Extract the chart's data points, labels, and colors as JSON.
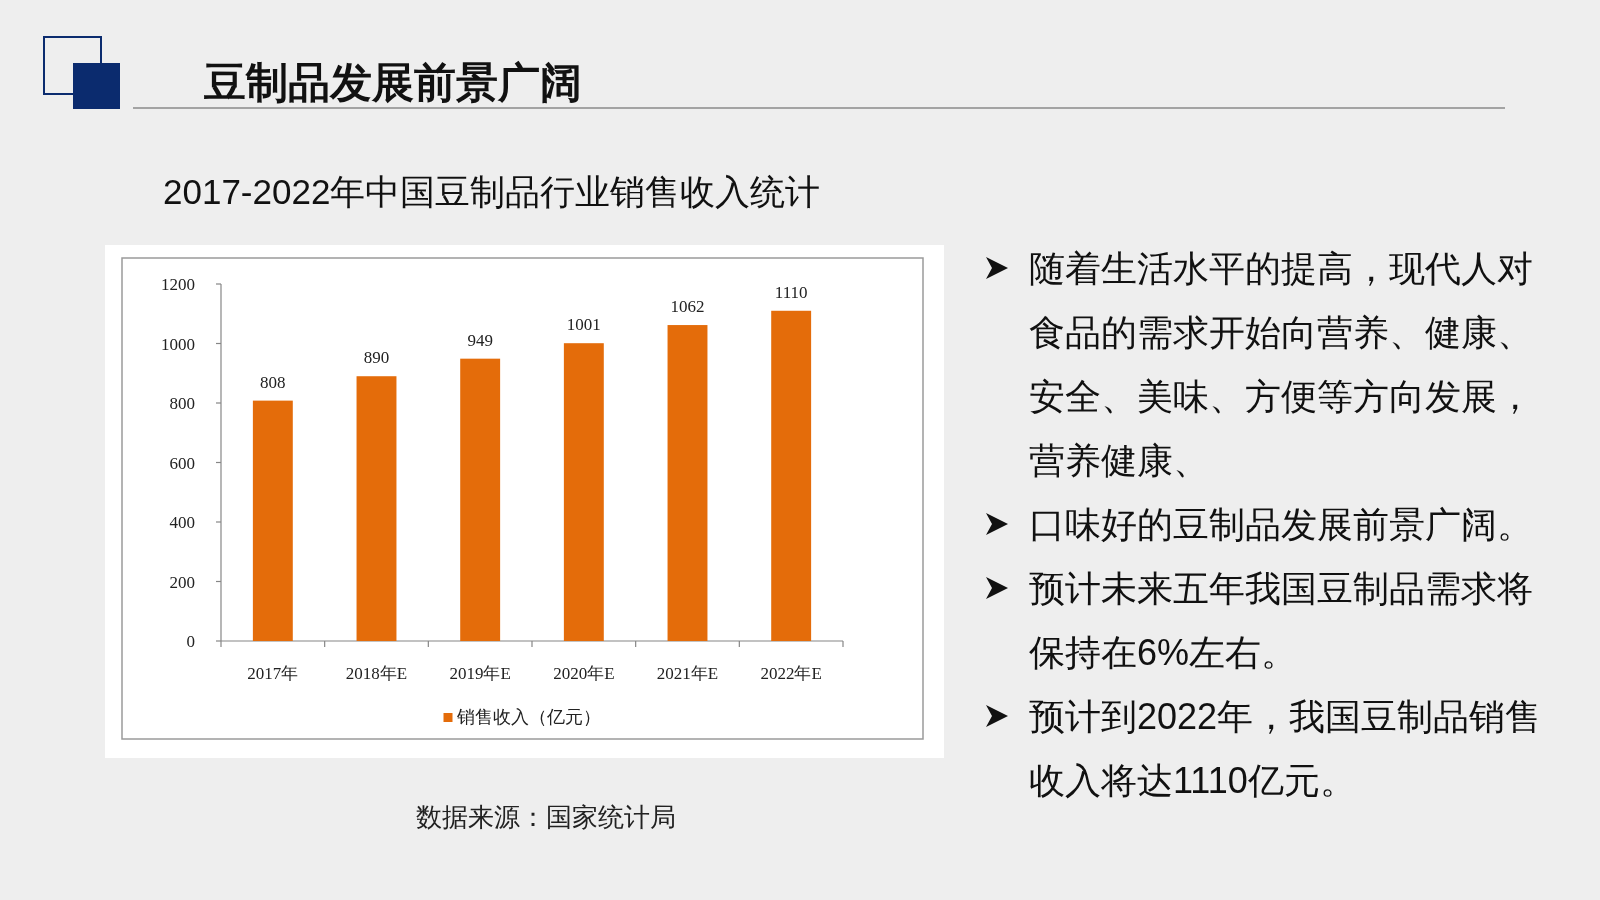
{
  "chart_data": {
    "type": "bar",
    "title": "豆制品发展前景广阔",
    "subtitle": "2017-2022年中国豆制品行业销售收入统计",
    "categories": [
      "2017年",
      "2018年E",
      "2019年E",
      "2020年E",
      "2021年E",
      "2022年E"
    ],
    "series": [
      {
        "name": "销售收入（亿元）",
        "color": "#e46c0a",
        "values": [
          808,
          890,
          949,
          1001,
          1062,
          1110
        ]
      }
    ],
    "ylim": [
      0,
      1200
    ],
    "yticks": [
      0,
      200,
      400,
      600,
      800,
      1000,
      1200
    ],
    "data_labels": true,
    "legend": "bottom",
    "annotations": [
      "随着生活水平的提高，现代人对食品的需求开始向营养、健康、安全、美味、方便等方向发展，营养健康、",
      "口味好的豆制品发展前景广阔。",
      "预计未来五年我国豆制品需求将保持在6%左右。",
      "预计到2022年，我国豆制品销售收入将达1110亿元。",
      "数据来源：国家统计局"
    ]
  }
}
